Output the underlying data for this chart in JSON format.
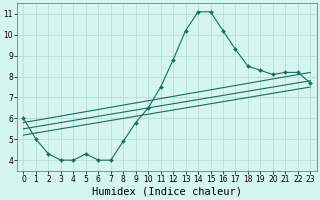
{
  "xlabel": "Humidex (Indice chaleur)",
  "xlim": [
    -0.5,
    23.5
  ],
  "ylim": [
    3.5,
    11.5
  ],
  "background_color": "#d4f5f0",
  "grid_color": "#b8ddd8",
  "line_color": "#1a6b60",
  "main_line": {
    "x": [
      0,
      1,
      2,
      3,
      4,
      5,
      6,
      7,
      8,
      9,
      10,
      11,
      12,
      13,
      14,
      15,
      16,
      17,
      18,
      19,
      20,
      21,
      22,
      23
    ],
    "y": [
      6.0,
      5.0,
      4.3,
      4.0,
      4.0,
      4.3,
      4.0,
      4.0,
      4.9,
      5.8,
      6.5,
      7.5,
      8.8,
      10.2,
      11.1,
      11.1,
      10.2,
      9.3,
      8.5,
      8.3,
      8.1,
      8.2,
      8.2,
      7.7
    ]
  },
  "trend_lines": [
    {
      "x": [
        0,
        23
      ],
      "y": [
        5.8,
        8.2
      ]
    },
    {
      "x": [
        0,
        23
      ],
      "y": [
        5.5,
        7.8
      ]
    },
    {
      "x": [
        0,
        23
      ],
      "y": [
        5.2,
        7.5
      ]
    }
  ],
  "xticks": [
    0,
    1,
    2,
    3,
    4,
    5,
    6,
    7,
    8,
    9,
    10,
    11,
    12,
    13,
    14,
    15,
    16,
    17,
    18,
    19,
    20,
    21,
    22,
    23
  ],
  "yticks": [
    4,
    5,
    6,
    7,
    8,
    9,
    10,
    11
  ],
  "tick_fontsize": 5.5,
  "xlabel_fontsize": 7.5
}
